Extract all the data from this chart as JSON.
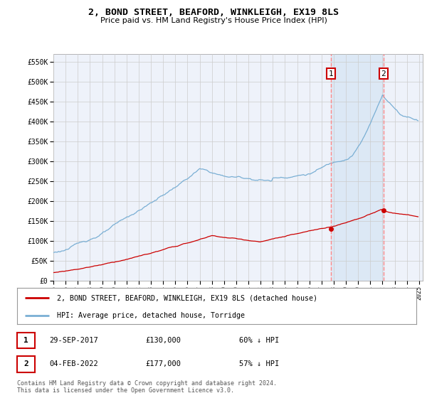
{
  "title": "2, BOND STREET, BEAFORD, WINKLEIGH, EX19 8LS",
  "subtitle": "Price paid vs. HM Land Registry's House Price Index (HPI)",
  "ylim": [
    0,
    570000
  ],
  "ytick_labels": [
    "£0",
    "£50K",
    "£100K",
    "£150K",
    "£200K",
    "£250K",
    "£300K",
    "£350K",
    "£400K",
    "£450K",
    "£500K",
    "£550K"
  ],
  "grid_color": "#cccccc",
  "background_color": "#ffffff",
  "plot_bg_color": "#eef2fa",
  "shade_color": "#dce8f5",
  "hpi_color": "#7aafd4",
  "sale_color": "#cc0000",
  "vline_color": "#ff8888",
  "t1_year": 2017.75,
  "t1_price": 130000,
  "t2_year": 2022.08,
  "t2_price": 177000,
  "legend_address": "2, BOND STREET, BEAFORD, WINKLEIGH, EX19 8LS (detached house)",
  "legend_hpi": "HPI: Average price, detached house, Torridge",
  "footer": "Contains HM Land Registry data © Crown copyright and database right 2024.\nThis data is licensed under the Open Government Licence v3.0.",
  "table_rows": [
    {
      "label": "1",
      "date": "29-SEP-2017",
      "price": "£130,000",
      "pct": "60% ↓ HPI"
    },
    {
      "label": "2",
      "date": "04-FEB-2022",
      "price": "£177,000",
      "pct": "57% ↓ HPI"
    }
  ]
}
